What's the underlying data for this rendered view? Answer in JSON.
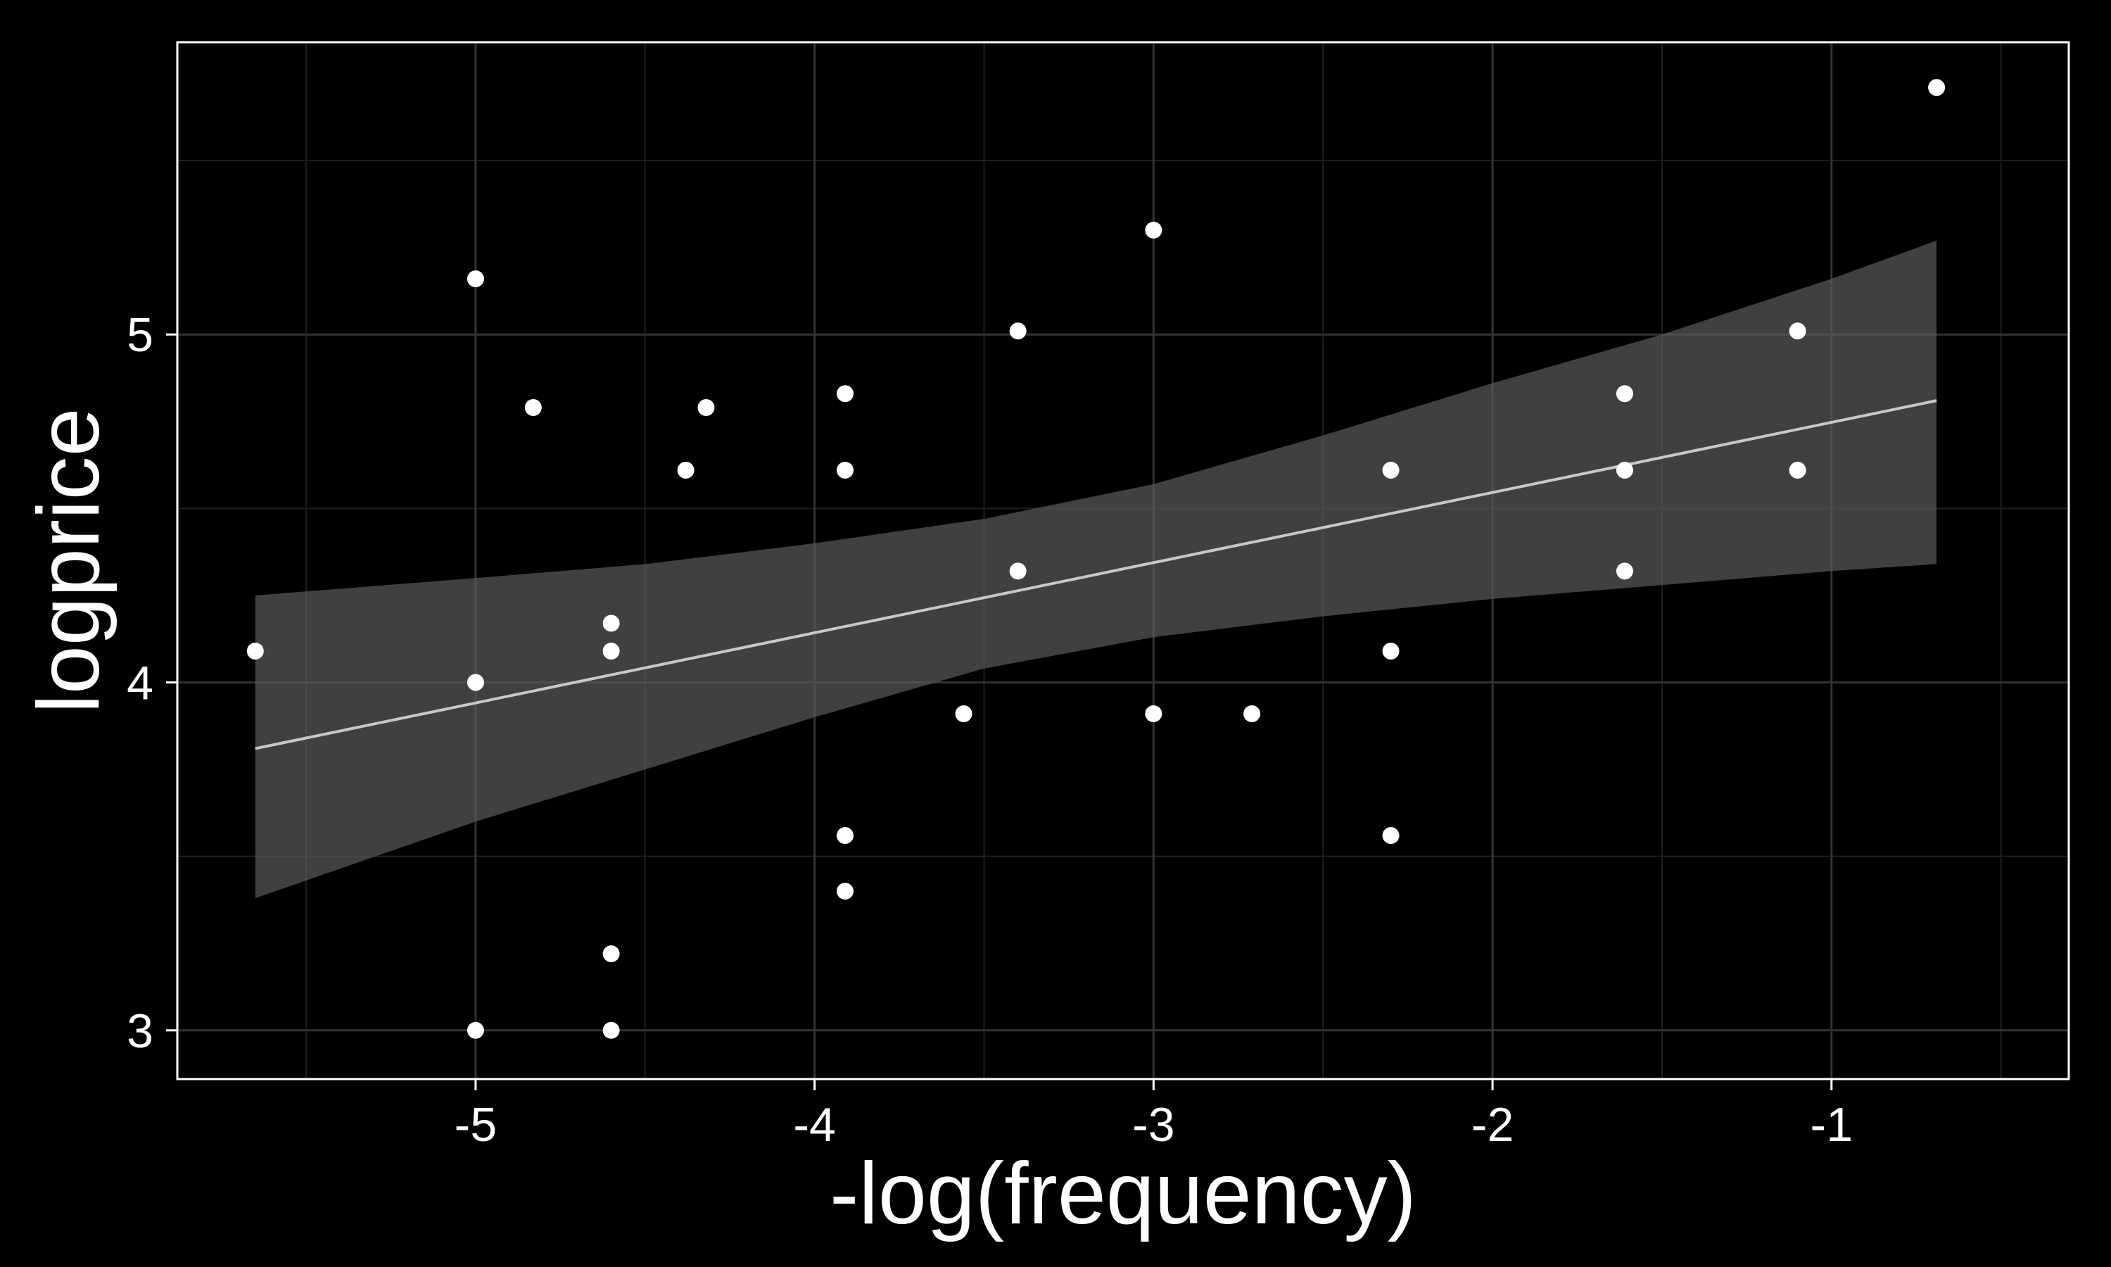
{
  "chart_data": {
    "type": "scatter",
    "title": "",
    "xlabel": "-log(frequency)",
    "ylabel": "logprice",
    "xlim": [
      -5.88,
      -0.3
    ],
    "ylim": [
      2.86,
      5.84
    ],
    "x_ticks": [
      -5,
      -4,
      -3,
      -2,
      -1
    ],
    "x_tick_labels": [
      "-5",
      "-4",
      "-3",
      "-2",
      "-1"
    ],
    "y_ticks": [
      3,
      4,
      5
    ],
    "y_tick_labels": [
      "3",
      "4",
      "5"
    ],
    "grid": true,
    "legend": "none",
    "colors": {
      "background": "#000000",
      "panel_border": "#ffffff",
      "grid_major": "#333333",
      "grid_minor": "#1f1f1f",
      "points": "#ffffff",
      "fit_line": "#c8c8c8",
      "confidence_band": "#595959"
    },
    "points": [
      {
        "x": -5.65,
        "y": 4.09
      },
      {
        "x": -5.0,
        "y": 5.16
      },
      {
        "x": -5.0,
        "y": 4.0
      },
      {
        "x": -5.0,
        "y": 3.0
      },
      {
        "x": -4.83,
        "y": 4.79
      },
      {
        "x": -4.6,
        "y": 4.17
      },
      {
        "x": -4.6,
        "y": 4.09
      },
      {
        "x": -4.6,
        "y": 3.22
      },
      {
        "x": -4.6,
        "y": 3.0
      },
      {
        "x": -4.38,
        "y": 4.61
      },
      {
        "x": -4.32,
        "y": 4.79
      },
      {
        "x": -3.91,
        "y": 4.83
      },
      {
        "x": -3.91,
        "y": 4.61
      },
      {
        "x": -3.91,
        "y": 3.56
      },
      {
        "x": -3.91,
        "y": 3.4
      },
      {
        "x": -3.56,
        "y": 3.91
      },
      {
        "x": -3.4,
        "y": 5.01
      },
      {
        "x": -3.4,
        "y": 4.32
      },
      {
        "x": -3.0,
        "y": 5.3
      },
      {
        "x": -3.0,
        "y": 3.91
      },
      {
        "x": -2.71,
        "y": 3.91
      },
      {
        "x": -2.3,
        "y": 4.61
      },
      {
        "x": -2.3,
        "y": 4.09
      },
      {
        "x": -2.3,
        "y": 3.56
      },
      {
        "x": -1.61,
        "y": 4.83
      },
      {
        "x": -1.61,
        "y": 4.61
      },
      {
        "x": -1.61,
        "y": 4.32
      },
      {
        "x": -1.1,
        "y": 5.01
      },
      {
        "x": -1.1,
        "y": 4.61
      },
      {
        "x": -0.69,
        "y": 5.71
      }
    ],
    "fit_line": {
      "x": [
        -5.65,
        -0.69
      ],
      "y": [
        3.81,
        4.81
      ]
    },
    "confidence_band": {
      "x": [
        -5.65,
        -5.0,
        -4.5,
        -4.0,
        -3.5,
        -3.0,
        -2.5,
        -2.0,
        -1.5,
        -1.0,
        -0.69
      ],
      "lower": [
        3.38,
        3.6,
        3.75,
        3.9,
        4.04,
        4.13,
        4.19,
        4.24,
        4.28,
        4.32,
        4.34
      ],
      "upper": [
        4.25,
        4.3,
        4.34,
        4.4,
        4.47,
        4.57,
        4.71,
        4.86,
        5.0,
        5.16,
        5.27
      ]
    }
  }
}
